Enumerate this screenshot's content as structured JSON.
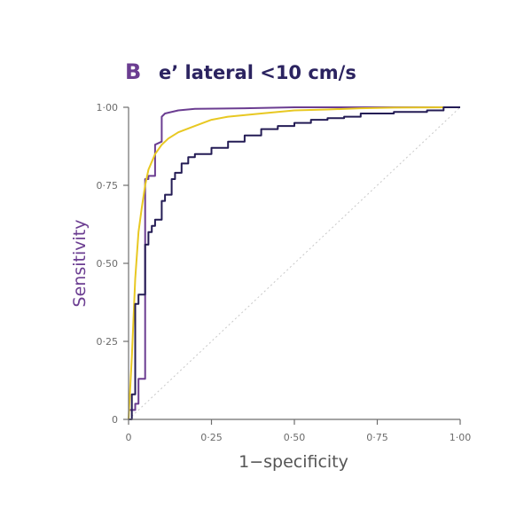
{
  "colors": {
    "axis": "#6e6e6e",
    "ylabel": "#6b3d91",
    "xlabel": "#555555",
    "title": "#2b2360",
    "panel_letter": "#6b3d91",
    "diagonal": "#c8c8c8"
  },
  "chart_data": {
    "type": "line",
    "panel_letter": "B",
    "title": "e’ lateral <10 cm/s",
    "xlabel": "1−specificity",
    "ylabel": "Sensitivity",
    "xlim": [
      0,
      1
    ],
    "ylim": [
      0,
      1
    ],
    "grid": false,
    "legend": "none",
    "x_ticks": [
      {
        "value": 0,
        "label": "0"
      },
      {
        "value": 0.25,
        "label": "0·25"
      },
      {
        "value": 0.5,
        "label": "0·50"
      },
      {
        "value": 0.75,
        "label": "0·75"
      },
      {
        "value": 1,
        "label": "1·00"
      }
    ],
    "y_ticks": [
      {
        "value": 0,
        "label": "0"
      },
      {
        "value": 0.25,
        "label": "0·25"
      },
      {
        "value": 0.5,
        "label": "0·50"
      },
      {
        "value": 0.75,
        "label": "0·75"
      },
      {
        "value": 1,
        "label": "1·00"
      }
    ],
    "reference_line": {
      "x": [
        0,
        1
      ],
      "y": [
        0,
        1
      ],
      "style": "dotted"
    },
    "series": [
      {
        "color": "#6b3d91",
        "step": true,
        "x": [
          0,
          0.02,
          0.02,
          0.03,
          0.03,
          0.05,
          0.05,
          0.06,
          0.06,
          0.08,
          0.08,
          0.1,
          0.1,
          0.11,
          0.15,
          0.2,
          0.35,
          0.5,
          1.0
        ],
        "y": [
          0.03,
          0.03,
          0.05,
          0.05,
          0.13,
          0.13,
          0.77,
          0.77,
          0.78,
          0.78,
          0.88,
          0.89,
          0.97,
          0.98,
          0.99,
          0.995,
          0.997,
          1.0,
          1.0
        ]
      },
      {
        "color": "#e8c822",
        "step": false,
        "x": [
          0,
          0.01,
          0.02,
          0.03,
          0.04,
          0.05,
          0.06,
          0.08,
          0.1,
          0.12,
          0.15,
          0.2,
          0.25,
          0.3,
          0.4,
          0.5,
          0.6,
          0.7,
          0.8,
          1.0
        ],
        "y": [
          0.0,
          0.2,
          0.45,
          0.6,
          0.68,
          0.75,
          0.8,
          0.85,
          0.88,
          0.9,
          0.92,
          0.94,
          0.96,
          0.97,
          0.98,
          0.99,
          0.993,
          0.997,
          0.999,
          1.0
        ]
      },
      {
        "color": "#241c55",
        "step": true,
        "x": [
          0,
          0.01,
          0.01,
          0.02,
          0.02,
          0.03,
          0.03,
          0.05,
          0.05,
          0.06,
          0.06,
          0.07,
          0.07,
          0.08,
          0.08,
          0.1,
          0.1,
          0.11,
          0.11,
          0.13,
          0.13,
          0.14,
          0.14,
          0.16,
          0.16,
          0.18,
          0.18,
          0.2,
          0.2,
          0.25,
          0.25,
          0.3,
          0.3,
          0.35,
          0.35,
          0.4,
          0.4,
          0.45,
          0.45,
          0.5,
          0.5,
          0.55,
          0.55,
          0.6,
          0.6,
          0.65,
          0.65,
          0.7,
          0.7,
          0.8,
          0.8,
          0.9,
          0.9,
          0.95,
          0.95,
          1.0
        ],
        "y": [
          0.0,
          0.0,
          0.08,
          0.08,
          0.37,
          0.37,
          0.4,
          0.4,
          0.56,
          0.56,
          0.6,
          0.6,
          0.62,
          0.62,
          0.64,
          0.64,
          0.7,
          0.7,
          0.72,
          0.72,
          0.77,
          0.77,
          0.79,
          0.79,
          0.82,
          0.82,
          0.84,
          0.84,
          0.85,
          0.85,
          0.87,
          0.87,
          0.89,
          0.89,
          0.91,
          0.91,
          0.93,
          0.93,
          0.94,
          0.94,
          0.95,
          0.95,
          0.96,
          0.96,
          0.965,
          0.965,
          0.97,
          0.97,
          0.98,
          0.98,
          0.985,
          0.985,
          0.99,
          0.99,
          1.0,
          1.0
        ]
      }
    ]
  }
}
